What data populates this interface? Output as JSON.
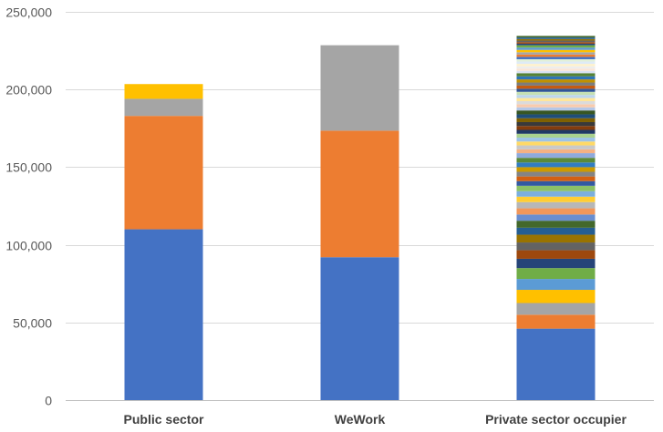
{
  "chart_data": {
    "type": "bar",
    "stacked": true,
    "categories": [
      "Public sector",
      "WeWork",
      "Private sector occupier"
    ],
    "ylim": [
      0,
      250000
    ],
    "yticks": [
      0,
      50000,
      100000,
      150000,
      200000,
      250000
    ],
    "ytick_labels": [
      "0",
      "50,000",
      "100,000",
      "150,000",
      "200,000",
      "250,000"
    ],
    "grid": true,
    "legend": "none",
    "bars": [
      {
        "category": "Public sector",
        "segments": [
          {
            "value": 110000,
            "color": "#4472c4"
          },
          {
            "value": 73000,
            "color": "#ed7d31"
          },
          {
            "value": 11000,
            "color": "#a5a5a5"
          },
          {
            "value": 9500,
            "color": "#ffc000"
          }
        ]
      },
      {
        "category": "WeWork",
        "segments": [
          {
            "value": 92000,
            "color": "#4472c4"
          },
          {
            "value": 81500,
            "color": "#ed7d31"
          },
          {
            "value": 55000,
            "color": "#a5a5a5"
          }
        ]
      },
      {
        "category": "Private sector occupier",
        "segments": [
          {
            "value": 46000,
            "color": "#4472c4"
          },
          {
            "value": 9000,
            "color": "#ed7d31"
          },
          {
            "value": 7500,
            "color": "#a5a5a5"
          },
          {
            "value": 8500,
            "color": "#ffc000"
          },
          {
            "value": 7000,
            "color": "#5b9bd5"
          },
          {
            "value": 7000,
            "color": "#70ad47"
          },
          {
            "value": 6000,
            "color": "#264478"
          },
          {
            "value": 5500,
            "color": "#9e480e"
          },
          {
            "value": 5000,
            "color": "#636363"
          },
          {
            "value": 5000,
            "color": "#997300"
          },
          {
            "value": 4500,
            "color": "#255e91"
          },
          {
            "value": 4500,
            "color": "#43682b"
          },
          {
            "value": 4000,
            "color": "#698ed0"
          },
          {
            "value": 4000,
            "color": "#f1975a"
          },
          {
            "value": 4000,
            "color": "#b7b7b7"
          },
          {
            "value": 3500,
            "color": "#ffcd33"
          },
          {
            "value": 3500,
            "color": "#7cafdd"
          },
          {
            "value": 3500,
            "color": "#8cc168"
          },
          {
            "value": 3000,
            "color": "#335aa1"
          },
          {
            "value": 3000,
            "color": "#d26012"
          },
          {
            "value": 3000,
            "color": "#848484"
          },
          {
            "value": 3000,
            "color": "#cc9a00"
          },
          {
            "value": 3000,
            "color": "#327dc2"
          },
          {
            "value": 3000,
            "color": "#5a8a39"
          },
          {
            "value": 3000,
            "color": "#8faadc"
          },
          {
            "value": 2500,
            "color": "#f4b183"
          },
          {
            "value": 2500,
            "color": "#c9c9c9"
          },
          {
            "value": 2500,
            "color": "#ffd966"
          },
          {
            "value": 2500,
            "color": "#9dc3e6"
          },
          {
            "value": 2500,
            "color": "#a9d18e"
          },
          {
            "value": 2500,
            "color": "#1f3864"
          },
          {
            "value": 2500,
            "color": "#843c0c"
          },
          {
            "value": 2500,
            "color": "#3a3a3a"
          },
          {
            "value": 2500,
            "color": "#7f6000"
          },
          {
            "value": 2500,
            "color": "#1f4e79"
          },
          {
            "value": 2500,
            "color": "#375623"
          },
          {
            "value": 2000,
            "color": "#b4c7e7"
          },
          {
            "value": 2000,
            "color": "#f8cbad"
          },
          {
            "value": 2000,
            "color": "#dbdbdb"
          },
          {
            "value": 2000,
            "color": "#ffe699"
          },
          {
            "value": 2000,
            "color": "#bdd7ee"
          },
          {
            "value": 2000,
            "color": "#c5e0b4"
          },
          {
            "value": 2000,
            "color": "#2f5597"
          },
          {
            "value": 2000,
            "color": "#c55a11"
          },
          {
            "value": 2000,
            "color": "#7b7b7b"
          },
          {
            "value": 2000,
            "color": "#bf9000"
          },
          {
            "value": 2000,
            "color": "#2e75b6"
          },
          {
            "value": 2000,
            "color": "#548235"
          },
          {
            "value": 1500,
            "color": "#dae3f3"
          },
          {
            "value": 1500,
            "color": "#fbe5d6"
          },
          {
            "value": 1500,
            "color": "#ededed"
          },
          {
            "value": 1500,
            "color": "#fff2cc"
          },
          {
            "value": 1500,
            "color": "#deebf7"
          },
          {
            "value": 1500,
            "color": "#e2f0d9"
          },
          {
            "value": 1500,
            "color": "#4472c4"
          },
          {
            "value": 1500,
            "color": "#ed7d31"
          },
          {
            "value": 1500,
            "color": "#a5a5a5"
          },
          {
            "value": 1500,
            "color": "#ffc000"
          },
          {
            "value": 1500,
            "color": "#5b9bd5"
          },
          {
            "value": 1500,
            "color": "#70ad47"
          },
          {
            "value": 1000,
            "color": "#264478"
          },
          {
            "value": 1000,
            "color": "#9e480e"
          },
          {
            "value": 1000,
            "color": "#636363"
          },
          {
            "value": 1000,
            "color": "#997300"
          },
          {
            "value": 1000,
            "color": "#255e91"
          },
          {
            "value": 1000,
            "color": "#43682b"
          }
        ]
      }
    ]
  }
}
